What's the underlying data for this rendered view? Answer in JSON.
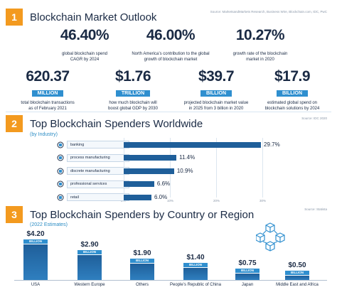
{
  "colors": {
    "accent": "#f39a1f",
    "bar": "#1f5f9a",
    "label_blue": "#2f8fcf",
    "text": "#1a2a44"
  },
  "section1": {
    "number": "1",
    "title": "Blockchain Market Outlook",
    "source": "Source: MarketsandMarkets Research, Business Wire, Blockchain.com, IDC, PwC",
    "stats": [
      {
        "value": "46.40%",
        "unit": "",
        "desc_1": "global blockchain spend",
        "desc_2": "CAGR by 2024"
      },
      {
        "value": "46.00%",
        "unit": "",
        "desc_1": "North America’s contribution to the global",
        "desc_2": "growth of blockchain market"
      },
      {
        "value": "10.27%",
        "unit": "",
        "desc_1": "growth rate of the blockchain",
        "desc_2": "market in 2020"
      },
      {
        "value": "620.37",
        "unit": "MILLION",
        "desc_1": "total blockchain transactions",
        "desc_2": "as of February 2021"
      },
      {
        "value": "$1.76",
        "unit": "TRILLION",
        "desc_1": "how much blockchain will",
        "desc_2": "boost global GDP by 2030"
      },
      {
        "value": "$39.7",
        "unit": "BILLION",
        "desc_1": "projected blockchain market value",
        "desc_2": "in 2025 from 3 billion in 2020"
      },
      {
        "value": "$17.9",
        "unit": "BILLION",
        "desc_1": "estimated global spend on",
        "desc_2": "blockchain solutions by 2024"
      }
    ]
  },
  "section2": {
    "number": "2",
    "title": "Top Blockchain Spenders Worldwide",
    "subtitle": "(by Industry)",
    "source": "Source: IDC 2020"
  },
  "section3": {
    "number": "3",
    "title": "Top Blockchain Spenders by Country or Region",
    "subtitle": "(2022 Estimates)",
    "source": "Source: Statista"
  },
  "chart_data": [
    {
      "type": "bar",
      "orientation": "horizontal",
      "title": "Top Blockchain Spenders Worldwide",
      "subtitle": "(by Industry)",
      "categories": [
        "banking",
        "process manufacturing",
        "discrete manufacturing",
        "professional services",
        "retail"
      ],
      "values": [
        29.7,
        11.4,
        10.9,
        6.6,
        6.0
      ],
      "value_labels": [
        "29.7%",
        "11.4%",
        "10.9%",
        "6.6%",
        "6.0%"
      ],
      "xlim": [
        0,
        30
      ],
      "x_ticks": [
        "0%",
        "10%",
        "20%",
        "30%"
      ],
      "grid": true
    },
    {
      "type": "bar",
      "orientation": "vertical",
      "title": "Top Blockchain Spenders by Country or Region",
      "subtitle": "(2022 Estimates)",
      "categories": [
        "USA",
        "Western Europe",
        "Others",
        "People’s Republic of China",
        "Japan",
        "Middle East and Africa"
      ],
      "values": [
        4.2,
        2.9,
        1.9,
        1.4,
        0.75,
        0.5
      ],
      "value_labels": [
        "$4.20",
        "$2.90",
        "$1.90",
        "$1.40",
        "$0.75",
        "$0.50"
      ],
      "unit_label": "BILLION",
      "ylim": [
        0,
        4.2
      ]
    }
  ]
}
